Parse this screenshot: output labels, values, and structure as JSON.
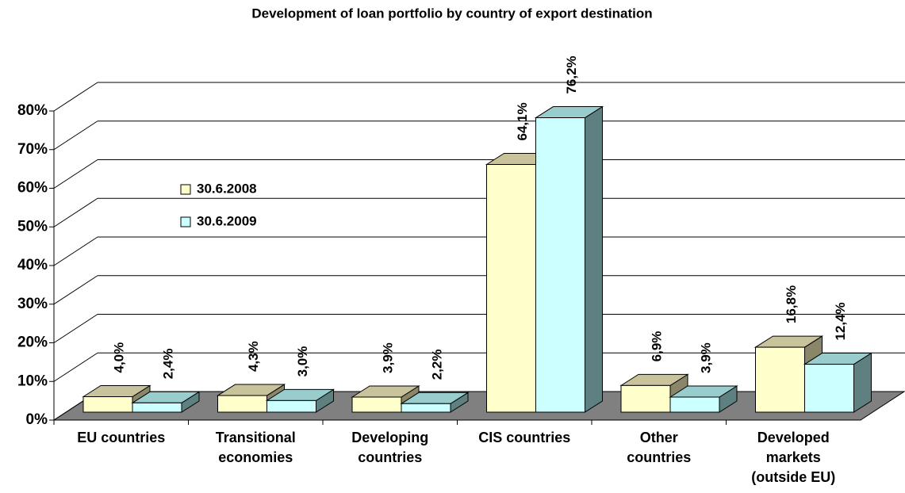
{
  "chart_data": {
    "type": "bar3d",
    "title": "Development of loan portfolio by country of export destination",
    "categories": [
      [
        "EU countries"
      ],
      [
        "Transitional",
        "economies"
      ],
      [
        "Developing",
        "countries"
      ],
      [
        "CIS countries"
      ],
      [
        "Other",
        "countries"
      ],
      [
        "Developed",
        "markets",
        "(outside EU)"
      ]
    ],
    "series": [
      {
        "name": "30.6.2008",
        "color": "#ffffcc",
        "top": "#c8c39a",
        "side": "#8a866a",
        "values": [
          4.0,
          4.3,
          3.9,
          64.1,
          6.9,
          16.8
        ],
        "value_labels": [
          "4,0%",
          "4,3%",
          "3,9%",
          "64,1%",
          "6,9%",
          "16,8%"
        ]
      },
      {
        "name": "30.6.2009",
        "color": "#ccffff",
        "top": "#99cccc",
        "side": "#5f8080",
        "values": [
          2.4,
          3.0,
          2.2,
          76.2,
          3.9,
          12.4
        ],
        "value_labels": [
          "2,4%",
          "3,0%",
          "2,2%",
          "76,2%",
          "3,9%",
          "12,4%"
        ]
      }
    ],
    "ylim": [
      0,
      80
    ],
    "yticks": [
      {
        "value": 0,
        "label": "0%"
      },
      {
        "value": 10,
        "label": "10%"
      },
      {
        "value": 20,
        "label": "20%"
      },
      {
        "value": 30,
        "label": "30%"
      },
      {
        "value": 40,
        "label": "40%"
      },
      {
        "value": 50,
        "label": "50%"
      },
      {
        "value": 60,
        "label": "60%"
      },
      {
        "value": 70,
        "label": "70%"
      },
      {
        "value": 80,
        "label": "80%"
      }
    ],
    "grid": true
  }
}
